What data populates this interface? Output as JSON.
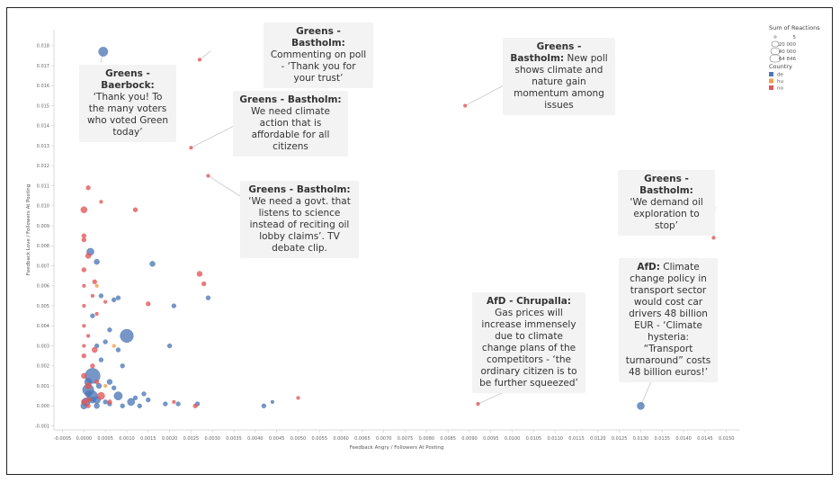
{
  "chart_data": {
    "type": "scatter",
    "xlabel": "Feedback Angry / Followers At Posting",
    "ylabel": "Feedback Love / Followers At Posting",
    "xlim": [
      -0.0007,
      0.0153
    ],
    "ylim": [
      -0.0012,
      0.0188
    ],
    "x_ticks": [
      "-0.0005",
      "0.0000",
      "0.0005",
      "0.0010",
      "0.0015",
      "0.0020",
      "0.0025",
      "0.0030",
      "0.0035",
      "0.0040",
      "0.0045",
      "0.0050",
      "0.0055",
      "0.0060",
      "0.0065",
      "0.0070",
      "0.0075",
      "0.0080",
      "0.0085",
      "0.0090",
      "0.0095",
      "0.0100",
      "0.0105",
      "0.0110",
      "0.0115",
      "0.0120",
      "0.0125",
      "0.0130",
      "0.0135",
      "0.0140",
      "0.0145",
      "0.0150"
    ],
    "y_ticks": [
      "-0.001",
      "0.000",
      "0.001",
      "0.002",
      "0.003",
      "0.004",
      "0.005",
      "0.006",
      "0.007",
      "0.008",
      "0.009",
      "0.010",
      "0.011",
      "0.012",
      "0.013",
      "0.014",
      "0.015",
      "0.016",
      "0.017",
      "0.018"
    ],
    "grid": false,
    "legend": {
      "size_title": "Sum of Reactions",
      "size_items": [
        {
          "label": "5",
          "value": 5
        },
        {
          "label": "20 000",
          "value": 20000
        },
        {
          "label": "40 000",
          "value": 40000
        },
        {
          "label": "64 846",
          "value": 64846
        }
      ],
      "color_title": "Country",
      "color_items": [
        {
          "label": "de",
          "color": "#4e79b7"
        },
        {
          "label": "hu",
          "color": "#f1a04b"
        },
        {
          "label": "no",
          "color": "#e15759"
        }
      ],
      "placement": "top-right"
    },
    "series": [
      {
        "name": "de",
        "color": "#4e79b7",
        "points": [
          [
            0.00045,
            0.0177,
            8
          ],
          [
            0.0005,
            0.0002,
            3
          ],
          [
            0.00015,
            0.0077,
            6
          ],
          [
            0.0003,
            0.0072,
            4
          ],
          [
            0.001,
            0.0035,
            12
          ],
          [
            0.0008,
            0.0005,
            7
          ],
          [
            0.0002,
            0.0015,
            14
          ],
          [
            0.0001,
            0.0008,
            10
          ],
          [
            0.0002,
            0.0005,
            9
          ],
          [
            5e-05,
            0.0002,
            7
          ],
          [
            0.0001,
            0.0012,
            6
          ],
          [
            0.0003,
            0.0003,
            6
          ],
          [
            0.00035,
            0.001,
            4
          ],
          [
            0.0006,
            0.0012,
            4
          ],
          [
            0.0008,
            0.0054,
            3
          ],
          [
            0.0007,
            0.0053,
            3
          ],
          [
            0.0004,
            0.0055,
            3
          ],
          [
            0.0002,
            0.0045,
            3
          ],
          [
            0.0005,
            0.0032,
            3
          ],
          [
            0.0008,
            0.0028,
            3
          ],
          [
            0.0006,
            0.0038,
            3
          ],
          [
            0.0011,
            0.0002,
            6
          ],
          [
            0.002,
            0.003,
            3
          ],
          [
            0.0021,
            0.005,
            3
          ],
          [
            0.0016,
            0.0071,
            4
          ],
          [
            0.0029,
            0.0054,
            3
          ],
          [
            0.00265,
            0.0001,
            3
          ],
          [
            0.0022,
            0.0001,
            3
          ],
          [
            0.0019,
            0.0001,
            3
          ],
          [
            0.0042,
            0.0,
            3
          ],
          [
            0.0044,
            0.0002,
            2
          ],
          [
            0.013,
            0.0,
            6
          ],
          [
            0.0014,
            0.0006,
            3
          ],
          [
            0.0015,
            0.0003,
            3
          ],
          [
            0.0007,
            0.0009,
            3
          ],
          [
            0.0004,
            0.0023,
            3
          ],
          [
            0.0003,
            0.003,
            3
          ],
          [
            0.0009,
            0.002,
            3
          ],
          [
            0.0012,
            0.0004,
            3
          ],
          [
            0.0,
            0.0,
            5
          ],
          [
            0.0003,
            0.0,
            4
          ],
          [
            0.0006,
            0.0001,
            3
          ],
          [
            0.0009,
            0.0,
            3
          ],
          [
            0.0013,
            0.0,
            3
          ],
          [
            0.0002,
            0.0003,
            5
          ],
          [
            0.0001,
            0.0006,
            5
          ]
        ]
      },
      {
        "name": "hu",
        "color": "#f1a04b",
        "points": [
          [
            0.0007,
            0.003,
            2
          ],
          [
            0.0003,
            0.006,
            2
          ],
          [
            0.0005,
            0.001,
            2
          ]
        ]
      },
      {
        "name": "no",
        "color": "#e15759",
        "points": [
          [
            0.0,
            0.0098,
            5
          ],
          [
            0.0001,
            0.0109,
            3
          ],
          [
            0.0004,
            0.0102,
            2
          ],
          [
            0.0012,
            0.0098,
            3
          ],
          [
            0.0,
            0.0085,
            3
          ],
          [
            0.0,
            0.0083,
            3
          ],
          [
            0.0001,
            0.0075,
            4
          ],
          [
            0.0,
            0.0068,
            3
          ],
          [
            0.00025,
            0.0062,
            3
          ],
          [
            0.0003,
            0.0046,
            2
          ],
          [
            0.0005,
            0.0052,
            2
          ],
          [
            0.00025,
            0.0028,
            4
          ],
          [
            0.0002,
            0.002,
            3
          ],
          [
            0.0,
            0.0015,
            4
          ],
          [
            0.0001,
            0.001,
            5
          ],
          [
            0.0004,
            0.0005,
            6
          ],
          [
            0.0001,
            0.0003,
            4
          ],
          [
            0.0,
            0.0002,
            4
          ],
          [
            0.0015,
            0.0051,
            3
          ],
          [
            0.0027,
            0.0066,
            4
          ],
          [
            0.0028,
            0.0061,
            3
          ],
          [
            0.0025,
            0.0129,
            2
          ],
          [
            0.0029,
            0.0115,
            2
          ],
          [
            0.0027,
            0.0173,
            2
          ],
          [
            0.0089,
            0.015,
            2
          ],
          [
            0.0147,
            0.0084,
            2
          ],
          [
            0.0092,
            0.0001,
            2
          ],
          [
            0.0026,
            0.0,
            3
          ],
          [
            0.0021,
            0.0002,
            2
          ],
          [
            0.005,
            0.0004,
            2
          ],
          [
            0.0,
            0.003,
            2
          ],
          [
            0.0,
            0.004,
            2
          ],
          [
            0.0,
            0.005,
            2
          ],
          [
            0.0,
            0.006,
            2
          ],
          [
            0.0001,
            0.0035,
            2
          ],
          [
            0.0002,
            0.0055,
            2
          ],
          [
            0.0,
            0.0025,
            3
          ],
          [
            0.0003,
            0.0012,
            3
          ],
          [
            0.0006,
            0.0002,
            3
          ],
          [
            0.0001,
            0.0,
            3
          ]
        ]
      }
    ],
    "annotations": [
      {
        "bold": "Greens - Bastholm:",
        "text": "Commenting on poll - ‘Thank you for your trust’"
      },
      {
        "bold": "Greens - Bastholm:",
        "text": "New poll shows climate and nature gain momentum among issues"
      },
      {
        "bold": "Greens - Baerbock:",
        "text": "‘Thank you! To the many voters who voted Green today’"
      },
      {
        "bold": "Greens - Bastholm:",
        "text": "We need climate action that is affordable for all citizens"
      },
      {
        "bold": "Greens - Bastholm:",
        "text": "‘We need a govt. that listens to science instead of reciting oil lobby claims’. TV debate clip."
      },
      {
        "bold": "Greens - Bastholm:",
        "text": "‘We demand oil exploration to stop’"
      },
      {
        "bold": "AfD:",
        "text": "Climate change policy in transport sector would cost car drivers 48 billion EUR - ‘Climate hysteria: “Transport turnaround” costs 48 billion euros!’"
      },
      {
        "bold": "AfD - Chrupalla:",
        "text": "Gas prices will increase immensely due to climate change plans of the competitors - ‘the ordinary citizen is to be further squeezed’"
      }
    ]
  }
}
